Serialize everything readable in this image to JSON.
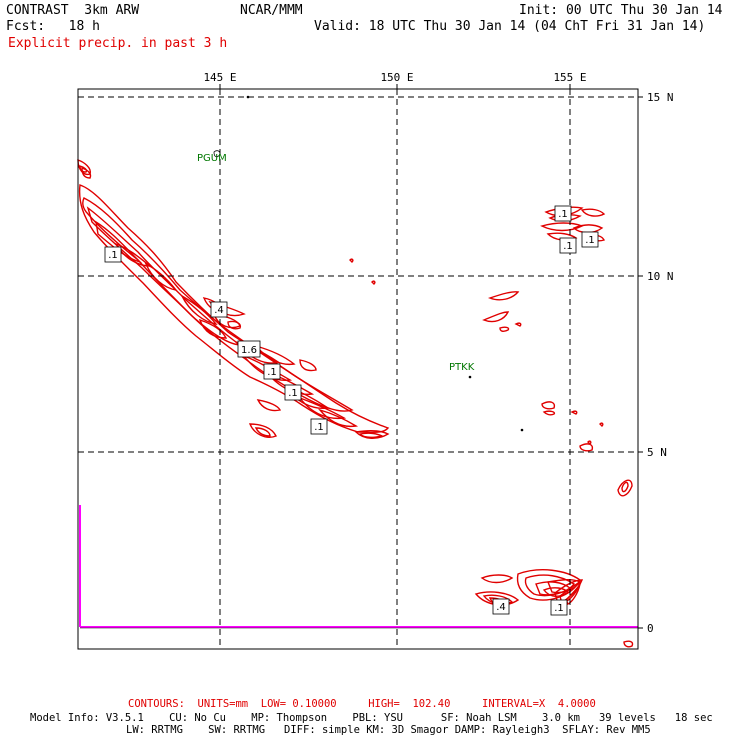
{
  "header": {
    "model": "CONTRAST  3km ARW",
    "org": "NCAR/MMM",
    "init": "Init: 00 UTC Thu 30 Jan 14",
    "fcst": "Fcst:   18 h",
    "valid": "Valid: 18 UTC Thu 30 Jan 14 (04 ChT Fri 31 Jan 14)",
    "field": "Explicit precip. in past 3 h"
  },
  "axes": {
    "lon_labels": [
      "145 E",
      "150 E",
      "155 E"
    ],
    "lat_labels": [
      "15 N",
      "10 N",
      "5 N",
      "0"
    ]
  },
  "stations": [
    "PGUM",
    "PTKK"
  ],
  "contour_labels": [
    ".1",
    ".4",
    "1.6",
    ".1",
    ".1",
    ".1",
    ".1",
    ".1",
    ".1",
    ".4",
    ".1"
  ],
  "footer": {
    "contours": "CONTOURS:  UNITS=mm  LOW= 0.10000     HIGH=  102.40     INTERVAL=X  4.0000",
    "model_info_1": "Model Info: V3.5.1    CU: No Cu    MP: Thompson    PBL: YSU      SF: Noah LSM    3.0 km   39 levels   18 sec",
    "model_info_2": "LW: RRTMG    SW: RRTMG   DIFF: simple KM: 3D Smagor DAMP: Rayleigh3  SFLAY: Rev MM5"
  },
  "colors": {
    "contour": "#e00000",
    "station": "#007700",
    "border": "#ff00ff",
    "grid": "#000000"
  }
}
